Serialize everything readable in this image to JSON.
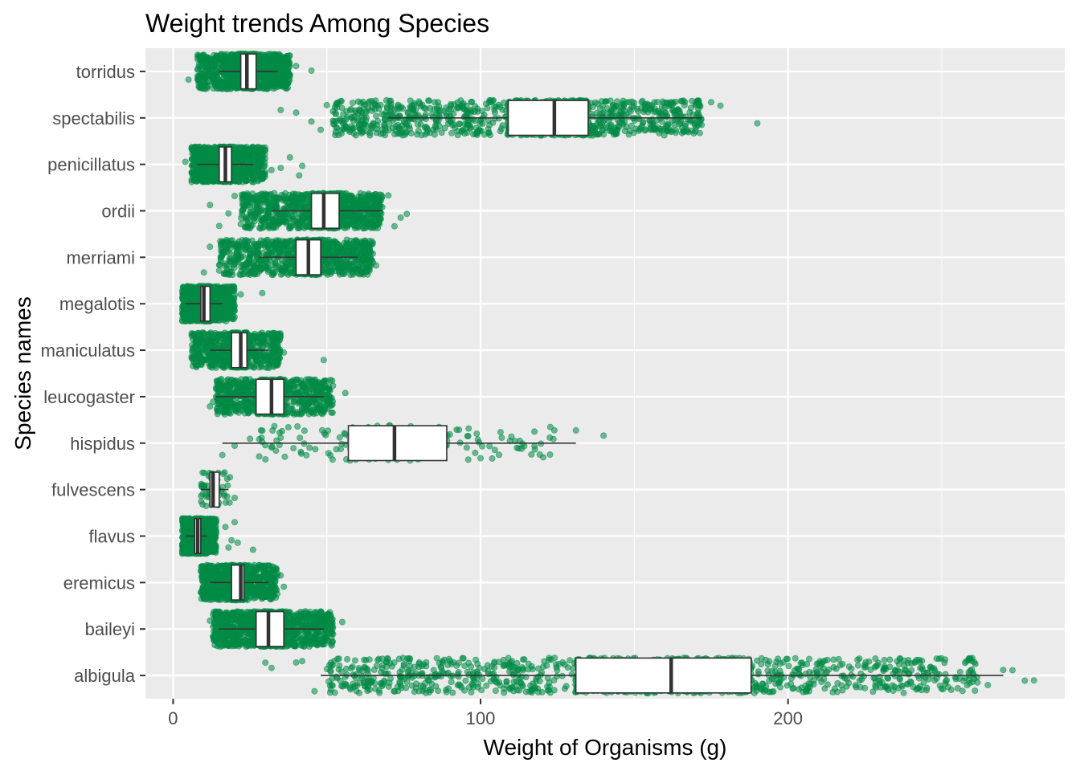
{
  "chart_data": {
    "type": "boxplot",
    "title": "Weight trends Among Species",
    "xlabel": "Weight of Organisms (g)",
    "ylabel": "Species names",
    "xlim": [
      -9,
      290
    ],
    "x_ticks": [
      0,
      100,
      200
    ],
    "x_tick_labels": [
      "0",
      "100",
      "200"
    ],
    "grid": true,
    "legend": "none",
    "colors": {
      "panel": "#EBEBEB",
      "grid": "#FFFFFF",
      "points": "#008B45",
      "box_fill": "#FFFFFF",
      "box_line": "#333333",
      "tick_text": "#4D4D4D"
    },
    "categories": [
      "torridus",
      "spectabilis",
      "penicillatus",
      "ordii",
      "merriami",
      "megalotis",
      "maniculatus",
      "leucogaster",
      "hispidus",
      "fulvescens",
      "flavus",
      "eremicus",
      "baileyi",
      "albigula"
    ],
    "boxes": [
      {
        "species": "torridus",
        "whisker_low": 15,
        "q1": 22,
        "median": 24,
        "q3": 27,
        "whisker_high": 34,
        "n": 2200,
        "jitter_min": 8,
        "jitter_max": 38,
        "outliers": [
          5,
          38,
          40,
          45
        ]
      },
      {
        "species": "spectabilis",
        "whisker_low": 70,
        "q1": 109,
        "median": 124,
        "q3": 135,
        "whisker_high": 172,
        "n": 2500,
        "jitter_min": 52,
        "jitter_max": 172,
        "outliers": [
          35,
          40,
          45,
          48,
          50,
          52,
          55,
          175,
          178,
          190
        ]
      },
      {
        "species": "penicillatus",
        "whisker_low": 8,
        "q1": 15,
        "median": 17,
        "q3": 19,
        "whisker_high": 26,
        "n": 3000,
        "jitter_min": 6,
        "jitter_max": 30,
        "outliers": [
          4,
          12,
          25,
          30,
          32,
          35,
          38,
          41,
          42
        ]
      },
      {
        "species": "ordii",
        "whisker_low": 32,
        "q1": 45,
        "median": 49,
        "q3": 54,
        "whisker_high": 68,
        "n": 3000,
        "jitter_min": 22,
        "jitter_max": 68,
        "outliers": [
          12,
          15,
          18,
          20,
          70,
          72,
          74,
          76
        ]
      },
      {
        "species": "merriami",
        "whisker_low": 28,
        "q1": 40,
        "median": 44,
        "q3": 48,
        "whisker_high": 60,
        "n": 10000,
        "jitter_min": 15,
        "jitter_max": 65,
        "outliers": [
          10,
          12,
          28,
          64,
          66
        ]
      },
      {
        "species": "megalotis",
        "whisker_low": 4,
        "q1": 9,
        "median": 10,
        "q3": 12,
        "whisker_high": 16,
        "n": 2000,
        "jitter_min": 3,
        "jitter_max": 20,
        "outliers": [
          20,
          22,
          29
        ]
      },
      {
        "species": "maniculatus",
        "whisker_low": 12,
        "q1": 19,
        "median": 22,
        "q3": 24,
        "whisker_high": 31,
        "n": 1000,
        "jitter_min": 6,
        "jitter_max": 35,
        "outliers": [
          6,
          8,
          36,
          49
        ]
      },
      {
        "species": "leucogaster",
        "whisker_low": 14,
        "q1": 27,
        "median": 32,
        "q3": 36,
        "whisker_high": 49,
        "n": 1000,
        "jitter_min": 14,
        "jitter_max": 52,
        "outliers": [
          12,
          13,
          14,
          50,
          56
        ]
      },
      {
        "species": "hispidus",
        "whisker_low": 16,
        "q1": 57,
        "median": 72,
        "q3": 89,
        "whisker_high": 131,
        "n": 180,
        "jitter_min": 28,
        "jitter_max": 125,
        "outliers": [
          16,
          20,
          25,
          28,
          30,
          35,
          90,
          100,
          106,
          124,
          131,
          140
        ]
      },
      {
        "species": "fulvescens",
        "whisker_low": 9,
        "q1": 12,
        "median": 13,
        "q3": 15,
        "whisker_high": 18,
        "n": 70,
        "jitter_min": 9,
        "jitter_max": 19,
        "outliers": [
          20
        ]
      },
      {
        "species": "flavus",
        "whisker_low": 4,
        "q1": 7,
        "median": 8,
        "q3": 9,
        "whisker_high": 11,
        "n": 1500,
        "jitter_min": 3,
        "jitter_max": 14,
        "outliers": [
          14,
          17,
          18,
          19,
          20,
          21,
          26
        ]
      },
      {
        "species": "eremicus",
        "whisker_low": 12,
        "q1": 19,
        "median": 22,
        "q3": 23,
        "whisker_high": 31,
        "n": 1200,
        "jitter_min": 9,
        "jitter_max": 34,
        "outliers": [
          9,
          32,
          35,
          36
        ]
      },
      {
        "species": "baileyi",
        "whisker_low": 15,
        "q1": 27,
        "median": 31,
        "q3": 36,
        "whisker_high": 49,
        "n": 2800,
        "jitter_min": 13,
        "jitter_max": 52,
        "outliers": [
          12,
          14,
          52,
          55
        ]
      },
      {
        "species": "albigula",
        "whisker_low": 48,
        "q1": 131,
        "median": 162,
        "q3": 188,
        "whisker_high": 270,
        "n": 2500,
        "jitter_min": 50,
        "jitter_max": 262,
        "outliers": [
          30,
          32,
          40,
          42,
          46,
          51,
          265,
          270,
          273,
          277,
          280
        ]
      }
    ]
  }
}
